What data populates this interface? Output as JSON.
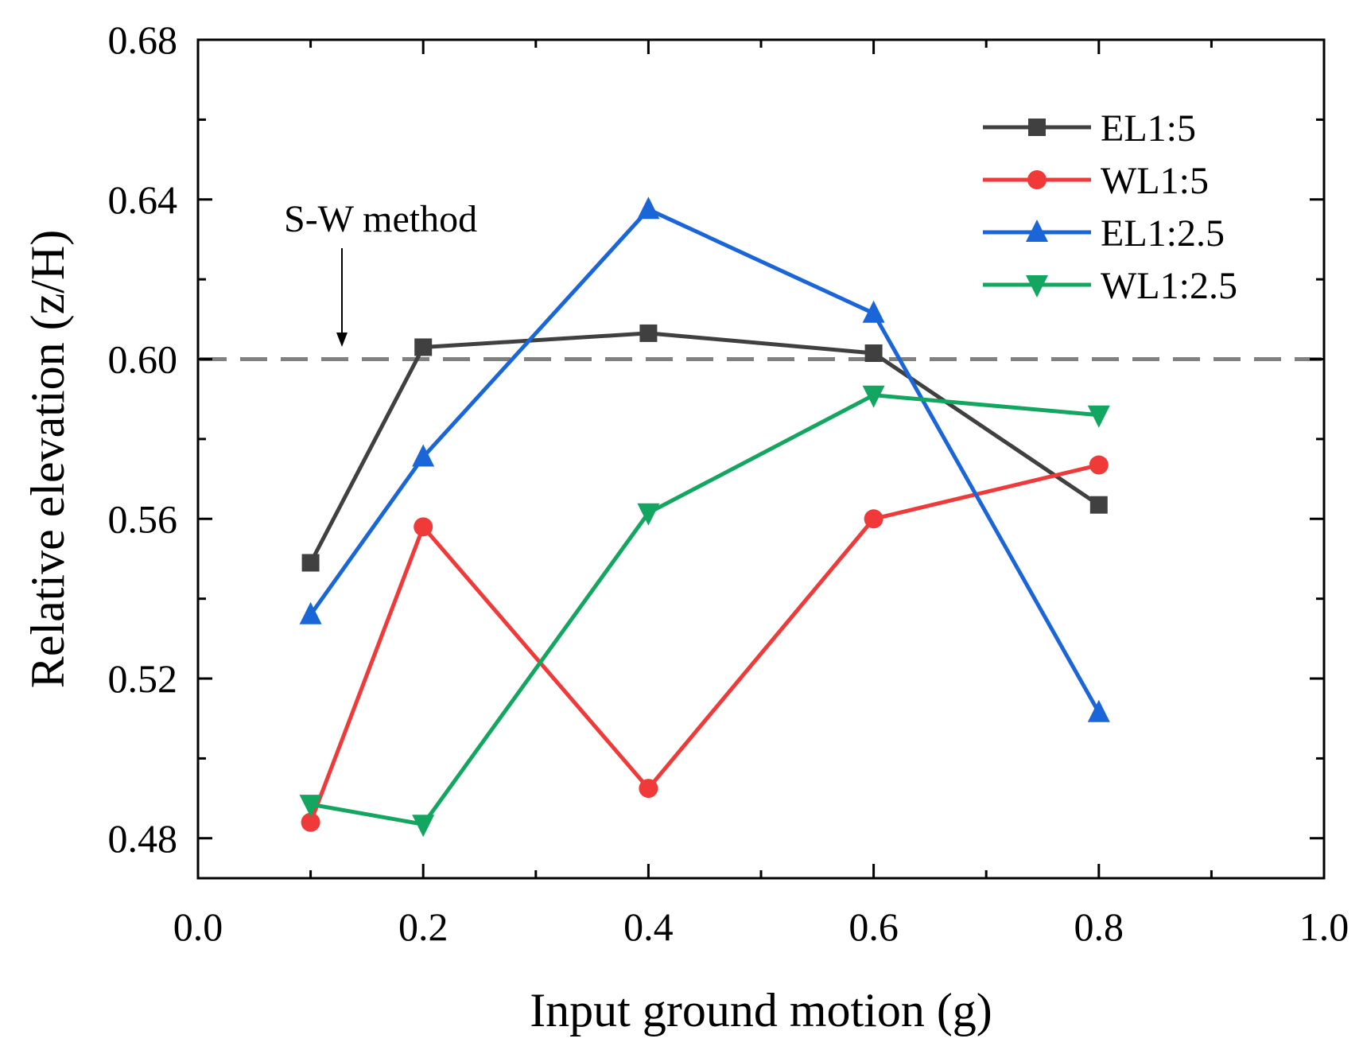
{
  "chart_data": {
    "type": "line",
    "title": "",
    "xlabel": "Input ground motion (g)",
    "ylabel": "Relative elevation (z/H)",
    "xlim": [
      0.0,
      1.0
    ],
    "ylim": [
      0.47,
      0.68
    ],
    "xticks": [
      0.0,
      0.2,
      0.4,
      0.6,
      0.8,
      1.0
    ],
    "xtick_labels": [
      "0.0",
      "0.2",
      "0.4",
      "0.6",
      "0.8",
      "1.0"
    ],
    "yticks": [
      0.48,
      0.52,
      0.56,
      0.6,
      0.64,
      0.68
    ],
    "ytick_labels": [
      "0.48",
      "0.52",
      "0.56",
      "0.60",
      "0.64",
      "0.68"
    ],
    "grid": false,
    "legend_position": "top-right",
    "reference_line": {
      "y": 0.6,
      "style": "dashed",
      "color": "#808080",
      "label": "S-W method"
    },
    "series": [
      {
        "name": "EL1:5",
        "color": "#404040",
        "marker": "square",
        "x": [
          0.1,
          0.2,
          0.4,
          0.6,
          0.8
        ],
        "y": [
          0.549,
          0.603,
          0.6065,
          0.6015,
          0.5635
        ]
      },
      {
        "name": "WL1:5",
        "color": "#f03a3a",
        "marker": "circle",
        "x": [
          0.1,
          0.2,
          0.4,
          0.6,
          0.8
        ],
        "y": [
          0.484,
          0.558,
          0.4925,
          0.56,
          0.5735
        ]
      },
      {
        "name": "EL1:2.5",
        "color": "#1a66d9",
        "marker": "triangle-up",
        "x": [
          0.1,
          0.2,
          0.4,
          0.6,
          0.8
        ],
        "y": [
          0.536,
          0.5755,
          0.6375,
          0.6115,
          0.5115
        ]
      },
      {
        "name": "WL1:2.5",
        "color": "#12a660",
        "marker": "triangle-down",
        "x": [
          0.1,
          0.2,
          0.4,
          0.6,
          0.8
        ],
        "y": [
          0.4885,
          0.4835,
          0.5615,
          0.591,
          0.586
        ]
      }
    ]
  }
}
